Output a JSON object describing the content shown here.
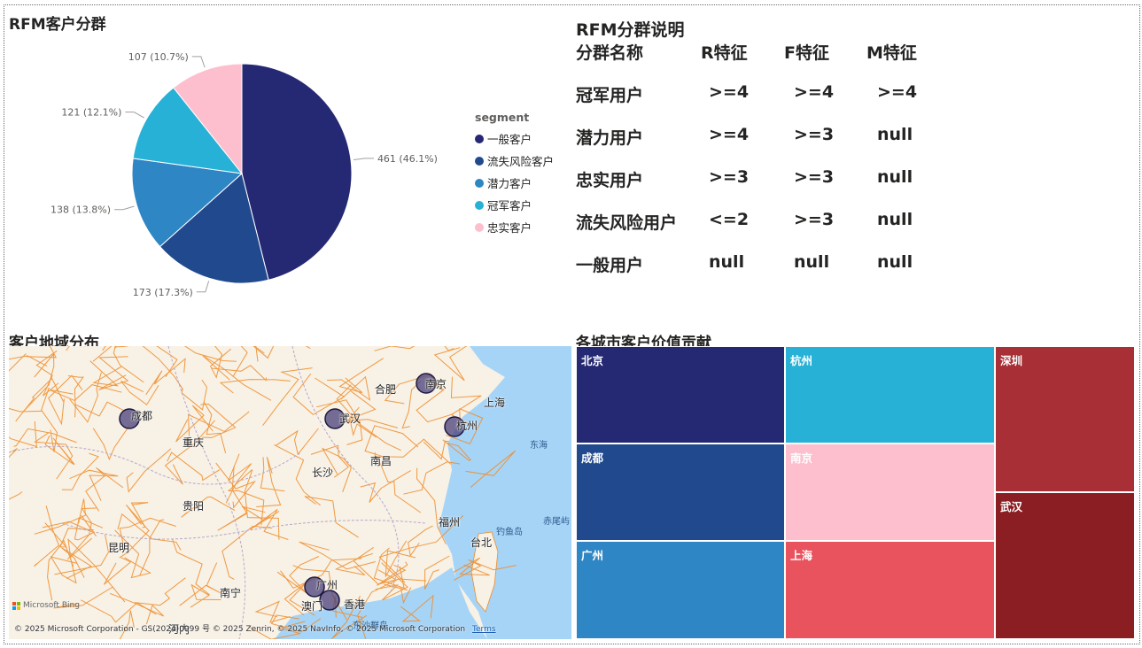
{
  "rfm_pie": {
    "title": "RFM客户分群",
    "legend_title": "segment",
    "labels": [
      "461 (46.1%)",
      "173 (17.3%)",
      "138 (13.8%)",
      "121 (12.1%)",
      "107 (10.7%)"
    ],
    "chart_data": {
      "type": "pie",
      "title": "RFM客户分群",
      "legend_title": "segment",
      "legend_position": "right",
      "slices": [
        {
          "name": "一般客户",
          "value": 461,
          "percent": 46.1,
          "color": "#252872"
        },
        {
          "name": "流失风险客户",
          "value": 173,
          "percent": 17.3,
          "color": "#214a8e"
        },
        {
          "name": "潜力客户",
          "value": 138,
          "percent": 13.8,
          "color": "#2f86c4"
        },
        {
          "name": "冠军客户",
          "value": 121,
          "percent": 12.1,
          "color": "#27b1d6"
        },
        {
          "name": "忠实客户",
          "value": 107,
          "percent": 10.7,
          "color": "#fdbfcd"
        }
      ]
    }
  },
  "rfm_table": {
    "title": "RFM分群说明",
    "headers": [
      "分群名称",
      "R特征",
      "F特征",
      "M特征"
    ],
    "rows": [
      [
        "冠军用户",
        ">=4",
        ">=4",
        ">=4"
      ],
      [
        "潜力用户",
        ">=4",
        ">=3",
        "null"
      ],
      [
        "忠实用户",
        ">=3",
        ">=3",
        "null"
      ],
      [
        "流失风险用户",
        "<=2",
        ">=3",
        "null"
      ],
      [
        "一般用户",
        "null",
        "null",
        "null"
      ]
    ]
  },
  "map": {
    "title": "客户地域分布",
    "cities": [
      "成都",
      "重庆",
      "贵阳",
      "昆明",
      "南宁",
      "武汉",
      "长沙",
      "南昌",
      "合肥",
      "南京",
      "上海",
      "杭州",
      "福州",
      "台北",
      "广州",
      "香港",
      "澳门",
      "河内"
    ],
    "seas": [
      "东海",
      "钓鱼岛",
      "赤尾屿",
      "东沙群岛"
    ],
    "bing_text": "Microsoft Bing",
    "copyright": "© 2025 Microsoft Corporation - GS(2024)0999 号 © 2025 Zenrin, © 2025 NavInfo, © 2025 Microsoft Corporation",
    "terms": "Terms",
    "bubble_cities": [
      "南京",
      "成都",
      "武汉",
      "杭州",
      "广州",
      "香港"
    ]
  },
  "treemap": {
    "title": "各城市客户价值贡献",
    "chart_data": {
      "type": "treemap",
      "title": "各城市客户价值贡献",
      "tiles": [
        {
          "name": "北京",
          "color": "#252872"
        },
        {
          "name": "成都",
          "color": "#214a8e"
        },
        {
          "name": "广州",
          "color": "#2f86c4"
        },
        {
          "name": "杭州",
          "color": "#27b1d6"
        },
        {
          "name": "南京",
          "color": "#fdbfcd"
        },
        {
          "name": "上海",
          "color": "#e8535e"
        },
        {
          "name": "深圳",
          "color": "#a72f35"
        },
        {
          "name": "武汉",
          "color": "#8a1e22"
        }
      ]
    }
  }
}
